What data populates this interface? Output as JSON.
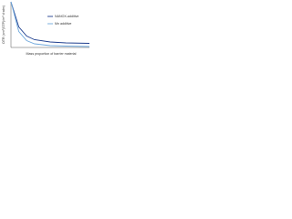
{
  "chart_data": {
    "type": "line",
    "x_label": "Mass proportion of barrier material",
    "y_label": "OTR (cm³(STP)/m²·d·atm)",
    "x": [
      0,
      0.1,
      0.2,
      0.3,
      0.5,
      0.7,
      1.0
    ],
    "series": [
      {
        "name": "NANOX-additive",
        "color": "#1f3f8f",
        "values": [
          1,
          0.45,
          0.25,
          0.17,
          0.12,
          0.1,
          0.09
        ]
      },
      {
        "name": "Mn additive",
        "color": "#6fa8dc",
        "values": [
          1,
          0.35,
          0.15,
          0.08,
          0.04,
          0.03,
          0.02
        ]
      }
    ],
    "xlim": [
      0,
      1
    ],
    "ylim": [
      0,
      1
    ]
  }
}
